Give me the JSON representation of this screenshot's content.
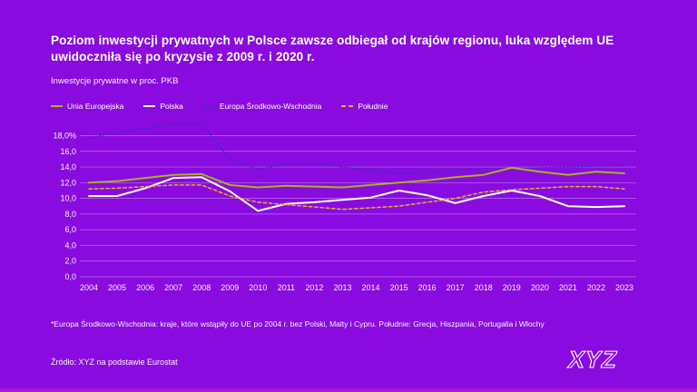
{
  "title": "Poziom inwestycji prywatnych w Polsce zawsze odbiegał od krajów regionu, luka względem UE uwidoczniła się po kryzysie z 2009 r. i 2020 r.",
  "subtitle": "Inwestycje prywatne w proc. PKB",
  "footnote": "*Europa Środkowo-Wschodnia: kraje, które wstąpiły do UE po 2004 r. bez Polski, Malty i Cypru. Południe: Grecja, Hiszpania, Portugalia i Włochy",
  "source": "Źródło: XYZ na podstawie Eurostat",
  "logo_text": "XYZ",
  "colors": {
    "background": "#890BDF",
    "bottom_bar": "#AC16D4",
    "gridline": "rgba(238,219,255,0.5)",
    "eu_line": "#A6B41C",
    "poland_line": "#FFFFFF",
    "cee_line": "#3A30B8",
    "south_line": "#E2B229"
  },
  "chart_data": {
    "type": "line",
    "title": "Inwestycje prywatne w proc. PKB",
    "xlabel": "",
    "ylabel": "proc. PKB",
    "ylim": [
      0,
      20
    ],
    "grid": true,
    "legend_position": "top-left",
    "x": [
      "2004",
      "2005",
      "2006",
      "2007",
      "2008",
      "2009",
      "2010",
      "2011",
      "2012",
      "2013",
      "2014",
      "2015",
      "2016",
      "2017",
      "2018",
      "2019",
      "2020",
      "2021",
      "2022",
      "2023"
    ],
    "yticks": [
      18,
      16,
      14,
      12,
      10,
      8,
      6,
      4,
      2,
      0
    ],
    "ytick_labels": [
      "18,0%",
      "16,0",
      "14,0",
      "12,0",
      "10,0",
      "8,0",
      "6,0",
      "4,0",
      "2,0",
      "0,0"
    ],
    "series": [
      {
        "id": "unia-europejska",
        "name": "Unia Europejska",
        "color": "#A6B41C",
        "dash": "solid",
        "width": 2,
        "z": 2,
        "values": [
          12.0,
          12.2,
          12.6,
          13.0,
          13.1,
          11.7,
          11.4,
          11.6,
          11.5,
          11.4,
          11.7,
          12.0,
          12.3,
          12.7,
          13.0,
          13.9,
          13.4,
          13.0,
          13.4,
          13.2
        ]
      },
      {
        "id": "polska",
        "name": "Polska",
        "color": "#FFFFFF",
        "dash": "solid",
        "width": 2,
        "z": 3,
        "values": [
          10.3,
          10.3,
          11.3,
          12.6,
          12.7,
          10.9,
          8.4,
          9.3,
          9.5,
          9.8,
          10.1,
          11.0,
          10.4,
          9.4,
          10.3,
          11.0,
          10.3,
          9.0,
          8.9,
          9.0
        ]
      },
      {
        "id": "europa-srodkowo-wschodnia",
        "name": "Europa Środkowo-Wschodnia",
        "color": "#3A30B8",
        "dash": "dotted",
        "width": 1.4,
        "z": 1,
        "values": [
          17.7,
          18.4,
          18.9,
          19.5,
          19.5,
          15.0,
          13.7,
          14.4,
          14.5,
          14.0,
          13.6,
          13.2,
          13.3,
          13.6,
          13.8,
          13.7,
          13.9,
          14.0,
          14.1,
          14.2
        ]
      },
      {
        "id": "poludnie",
        "name": "Południe",
        "color": "#E2B229",
        "dash": "dashed",
        "width": 1.5,
        "z": 4,
        "values": [
          11.2,
          11.3,
          11.5,
          11.7,
          11.7,
          10.3,
          9.5,
          9.2,
          8.9,
          8.6,
          8.8,
          9.0,
          9.5,
          10.0,
          10.8,
          11.1,
          11.3,
          11.5,
          11.5,
          11.2
        ]
      }
    ]
  }
}
